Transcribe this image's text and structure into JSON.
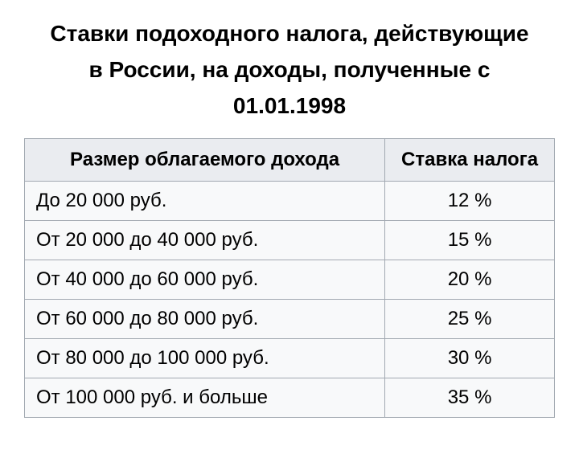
{
  "title": {
    "line1": "Ставки подоходного налога, действующие",
    "line2": "в России, на доходы, полученные с",
    "line3": "01.01.1998"
  },
  "table": {
    "columns": [
      "Размер облагаемого дохода",
      "Ставка налога"
    ],
    "rows": [
      {
        "income": "До 20 000 руб.",
        "rate": "12 %"
      },
      {
        "income": "От 20 000 до 40 000 руб.",
        "rate": "15 %"
      },
      {
        "income": "От 40 000 до 60 000 руб.",
        "rate": "20 %"
      },
      {
        "income": "От 60 000 до 80 000 руб.",
        "rate": "25 %"
      },
      {
        "income": "От 80 000 до 100 000 руб.",
        "rate": "30 %"
      },
      {
        "income": "От 100 000 руб. и больше",
        "rate": "35 %"
      }
    ],
    "styling": {
      "background_color": "#f8f9fa",
      "header_background": "#eaecf0",
      "border_color": "#a2a9b1",
      "text_color": "#000000",
      "title_fontsize": 28,
      "cell_fontsize": 24,
      "col_widths_pct": [
        68,
        32
      ],
      "income_align": "left",
      "rate_align": "center"
    }
  }
}
